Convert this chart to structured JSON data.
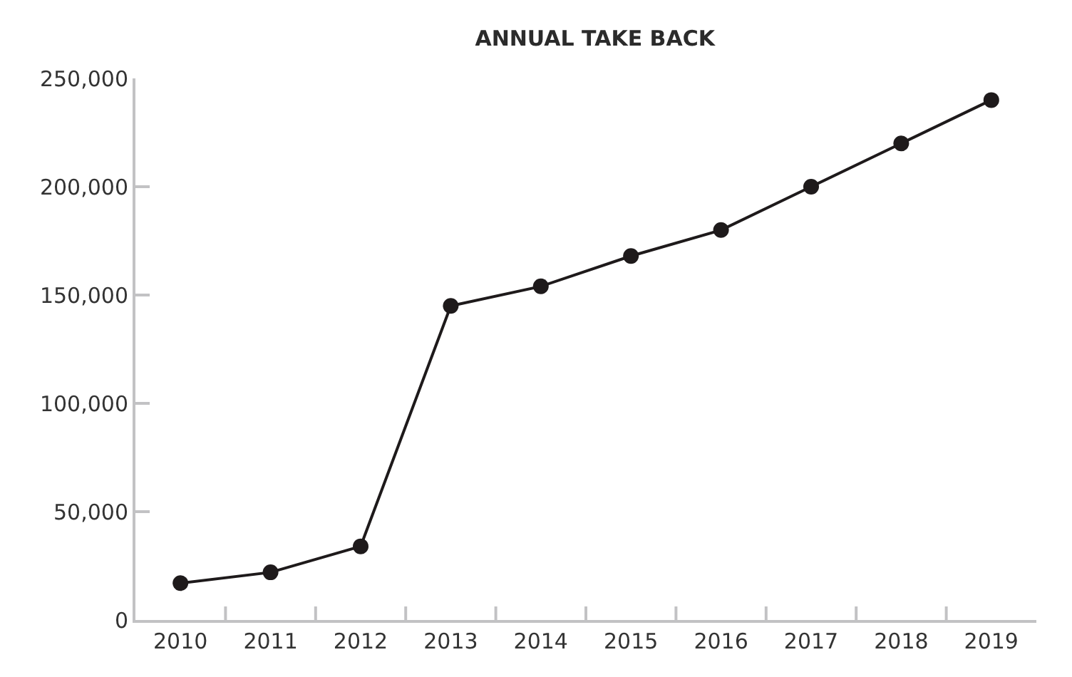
{
  "chart_data": {
    "type": "line",
    "title": "ANNUAL TAKE BACK",
    "categories": [
      "2010",
      "2011",
      "2012",
      "2013",
      "2014",
      "2015",
      "2016",
      "2017",
      "2018",
      "2019"
    ],
    "series": [
      {
        "color": "#1e1a1b",
        "values": [
          17000,
          22000,
          34000,
          145000,
          154000,
          168000,
          180000,
          200000,
          220000,
          240000
        ]
      }
    ],
    "ylim": [
      0,
      250000
    ],
    "yticks": [
      0,
      {
        "value": 50000,
        "label": "50,000"
      },
      {
        "value": 100000,
        "label": "100,000"
      },
      {
        "value": 150000,
        "label": "150,000"
      },
      {
        "value": 200000,
        "label": "200,000"
      },
      {
        "value": 250000,
        "label": "250,000"
      }
    ],
    "marker": "circle",
    "line_style": "solid"
  }
}
